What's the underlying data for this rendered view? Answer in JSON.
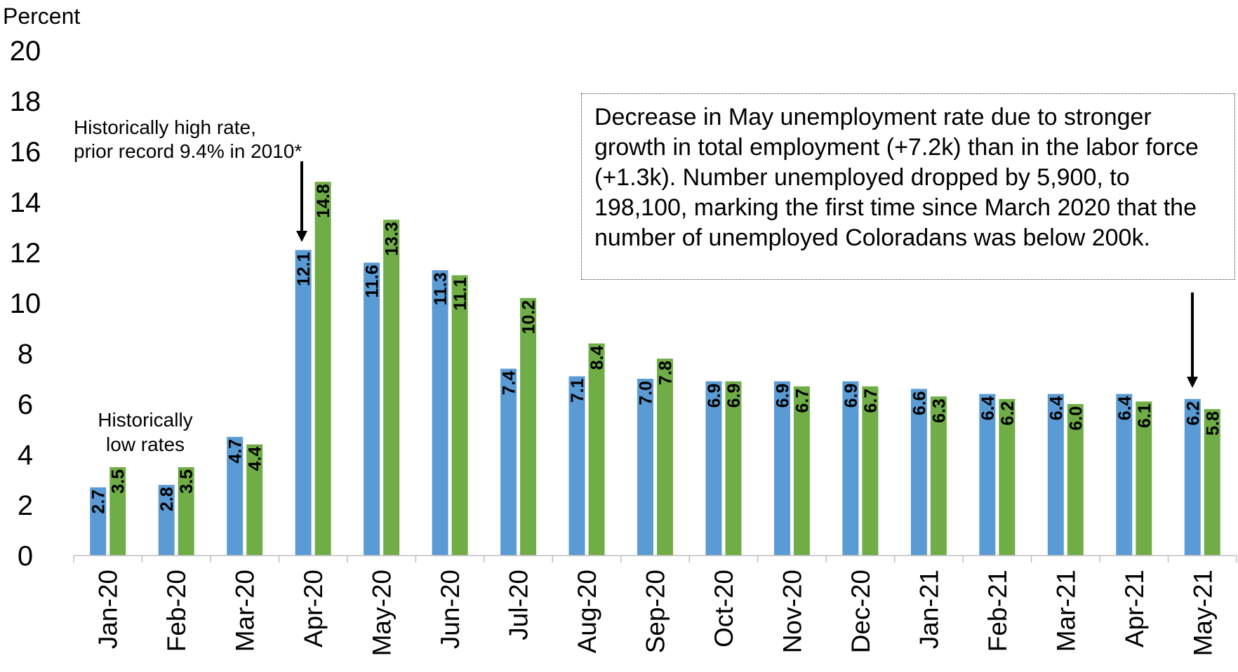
{
  "chart_data": {
    "type": "bar",
    "ylabel": "Percent",
    "ylim": [
      0,
      20
    ],
    "yticks": [
      "0",
      "2",
      "4",
      "6",
      "8",
      "10",
      "12",
      "14",
      "16",
      "18",
      "20"
    ],
    "grid": false,
    "legend": "none",
    "categories": [
      "Jan-20",
      "Feb-20",
      "Mar-20",
      "Apr-20",
      "May-20",
      "Jun-20",
      "Jul-20",
      "Aug-20",
      "Sep-20",
      "Oct-20",
      "Nov-20",
      "Dec-20",
      "Jan-21",
      "Feb-21",
      "Mar-21",
      "Apr-21",
      "May-21"
    ],
    "series": [
      {
        "color": "#5b9bd5",
        "values": [
          2.7,
          2.8,
          4.7,
          12.1,
          11.6,
          11.3,
          7.4,
          7.1,
          7.0,
          6.9,
          6.9,
          6.9,
          6.6,
          6.4,
          6.4,
          6.4,
          6.2
        ],
        "labels": [
          "2.7",
          "2.8",
          "4.7",
          "12.1",
          "11.6",
          "11.3",
          "7.4",
          "7.1",
          "7.0",
          "6.9",
          "6.9",
          "6.9",
          "6.6",
          "6.4",
          "6.4",
          "6.4",
          "6.2"
        ]
      },
      {
        "color": "#70ad47",
        "values": [
          3.5,
          3.5,
          4.4,
          14.8,
          13.3,
          11.1,
          10.2,
          8.4,
          7.8,
          6.9,
          6.7,
          6.7,
          6.3,
          6.2,
          6.0,
          6.1,
          5.8
        ],
        "labels": [
          "3.5",
          "3.5",
          "4.4",
          "14.8",
          "13.3",
          "11.1",
          "10.2",
          "8.4",
          "7.8",
          "6.9",
          "6.7",
          "6.7",
          "6.3",
          "6.2",
          "6.0",
          "6.1",
          "5.8"
        ]
      }
    ],
    "annotations": {
      "low_rates": [
        "Historically",
        "low rates"
      ],
      "high_rate": [
        "Historically high rate,",
        "prior record 9.4% in 2010*"
      ],
      "callout": "Decrease in May unemployment rate due to stronger growth in total employment (+7.2k) than in the labor force (+1.3k). Number unemployed dropped by 5,900, to 198,100, marking the first time since March 2020 that the number of unemployed Coloradans was below 200k."
    }
  }
}
